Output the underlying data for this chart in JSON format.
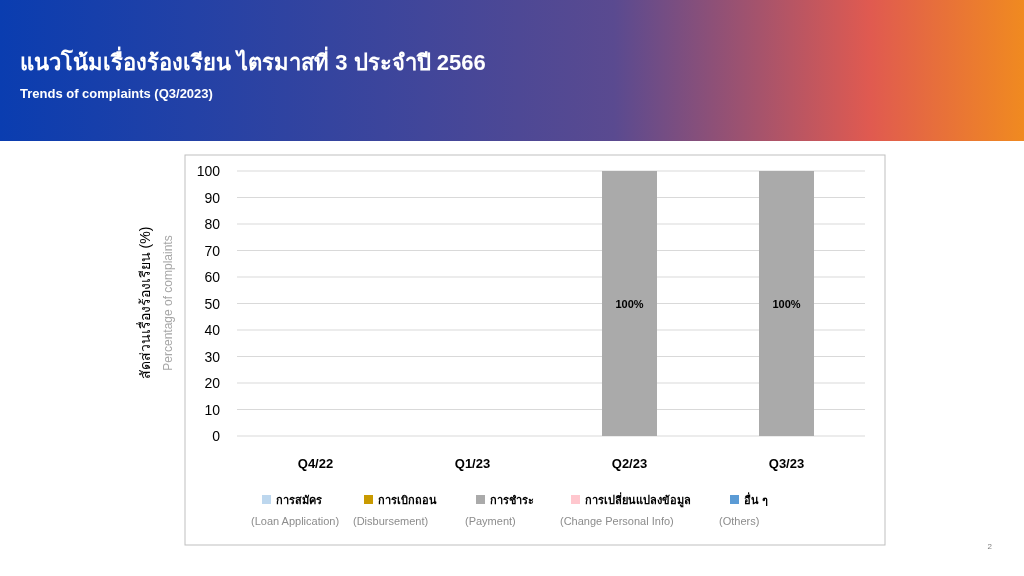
{
  "chart_data": {
    "type": "bar",
    "stacked": true,
    "title": "แนวโน้มเรื่องร้องเรียน ไตรมาสที่ 3 ประจำปี 2566",
    "subtitle": "Trends of complaints (Q3/2023)",
    "ylabel": "สัดส่วนเรื่องร้องเรียน (%)\nPercentage of complaints",
    "categories": [
      "Q4/22",
      "Q1/23",
      "Q2/23",
      "Q3/23"
    ],
    "series": [
      {
        "name": "การสมัคร\n(Loan Application)",
        "color": "#bdd7ee",
        "values": [
          0,
          0,
          0,
          0
        ]
      },
      {
        "name": "การเบิกถอน\n(Disbursement)",
        "color": "#c99a00",
        "values": [
          0,
          0,
          0,
          0
        ]
      },
      {
        "name": "การชำระ\n(Payment)",
        "color": "#aaaaaa",
        "values": [
          0,
          0,
          100,
          100
        ],
        "value_labels": [
          null,
          null,
          "100%",
          "100%"
        ]
      },
      {
        "name": "การเปลี่ยนแปลงข้อมูล\n(Change Personal Info)",
        "color": "#ffc7ce",
        "values": [
          0,
          0,
          0,
          0
        ]
      },
      {
        "name": "อื่น ๆ\n(Others)",
        "color": "#5b9bd5",
        "values": [
          0,
          0,
          0,
          0
        ]
      }
    ],
    "ylim": [
      0,
      100
    ],
    "yticks": [
      0,
      10,
      20,
      30,
      40,
      50,
      60,
      70,
      80,
      90,
      100
    ],
    "grid": "y",
    "legend": "bottom",
    "annotations": [
      "2"
    ]
  }
}
